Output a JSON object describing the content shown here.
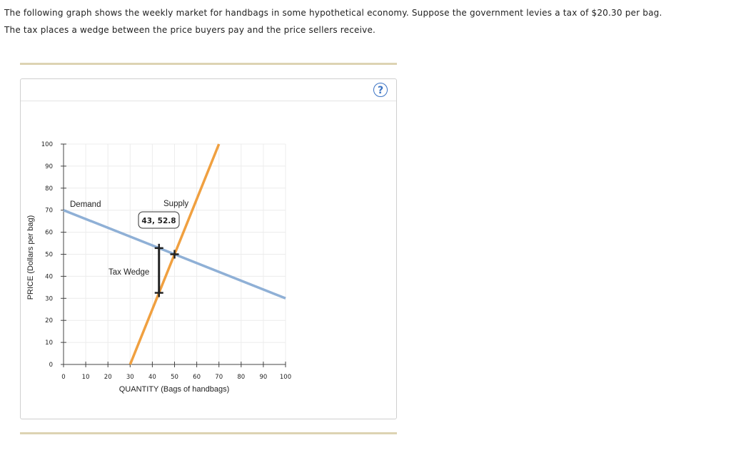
{
  "question": {
    "line1": "The following graph shows the weekly market for handbags in some hypothetical economy. Suppose the government levies a tax of $20.30 per bag.",
    "line2": "The tax places a wedge between the price buyers pay and the price sellers receive."
  },
  "help_icon": {
    "glyph": "?",
    "icon": "help-icon",
    "color": "#3b73c4"
  },
  "chart_data": {
    "type": "line",
    "xlabel": "QUANTITY (Bags of handbags)",
    "ylabel": "PRICE (Dollars per bag)",
    "xlim": [
      0,
      100
    ],
    "ylim": [
      0,
      100
    ],
    "x_ticks": [
      0,
      10,
      20,
      30,
      40,
      50,
      60,
      70,
      80,
      90,
      100
    ],
    "y_ticks": [
      0,
      10,
      20,
      30,
      40,
      50,
      60,
      70,
      80,
      90,
      100
    ],
    "grid": true,
    "series": [
      {
        "name": "Demand",
        "color": "#8fb0d6",
        "points": [
          [
            0,
            70
          ],
          [
            100,
            30
          ]
        ]
      },
      {
        "name": "Supply",
        "color": "#f0a040",
        "points": [
          [
            30,
            0
          ],
          [
            70,
            100
          ]
        ]
      }
    ],
    "tax_wedge": {
      "label": "Tax Wedge",
      "x": 43,
      "buyer_price": 52.8,
      "seller_price": 32.5,
      "color": "#222222"
    },
    "equilibrium_marker": {
      "x": 50,
      "y": 50
    },
    "tooltip": {
      "text": "43, 52.8",
      "x": 43,
      "y": 52.8
    }
  }
}
